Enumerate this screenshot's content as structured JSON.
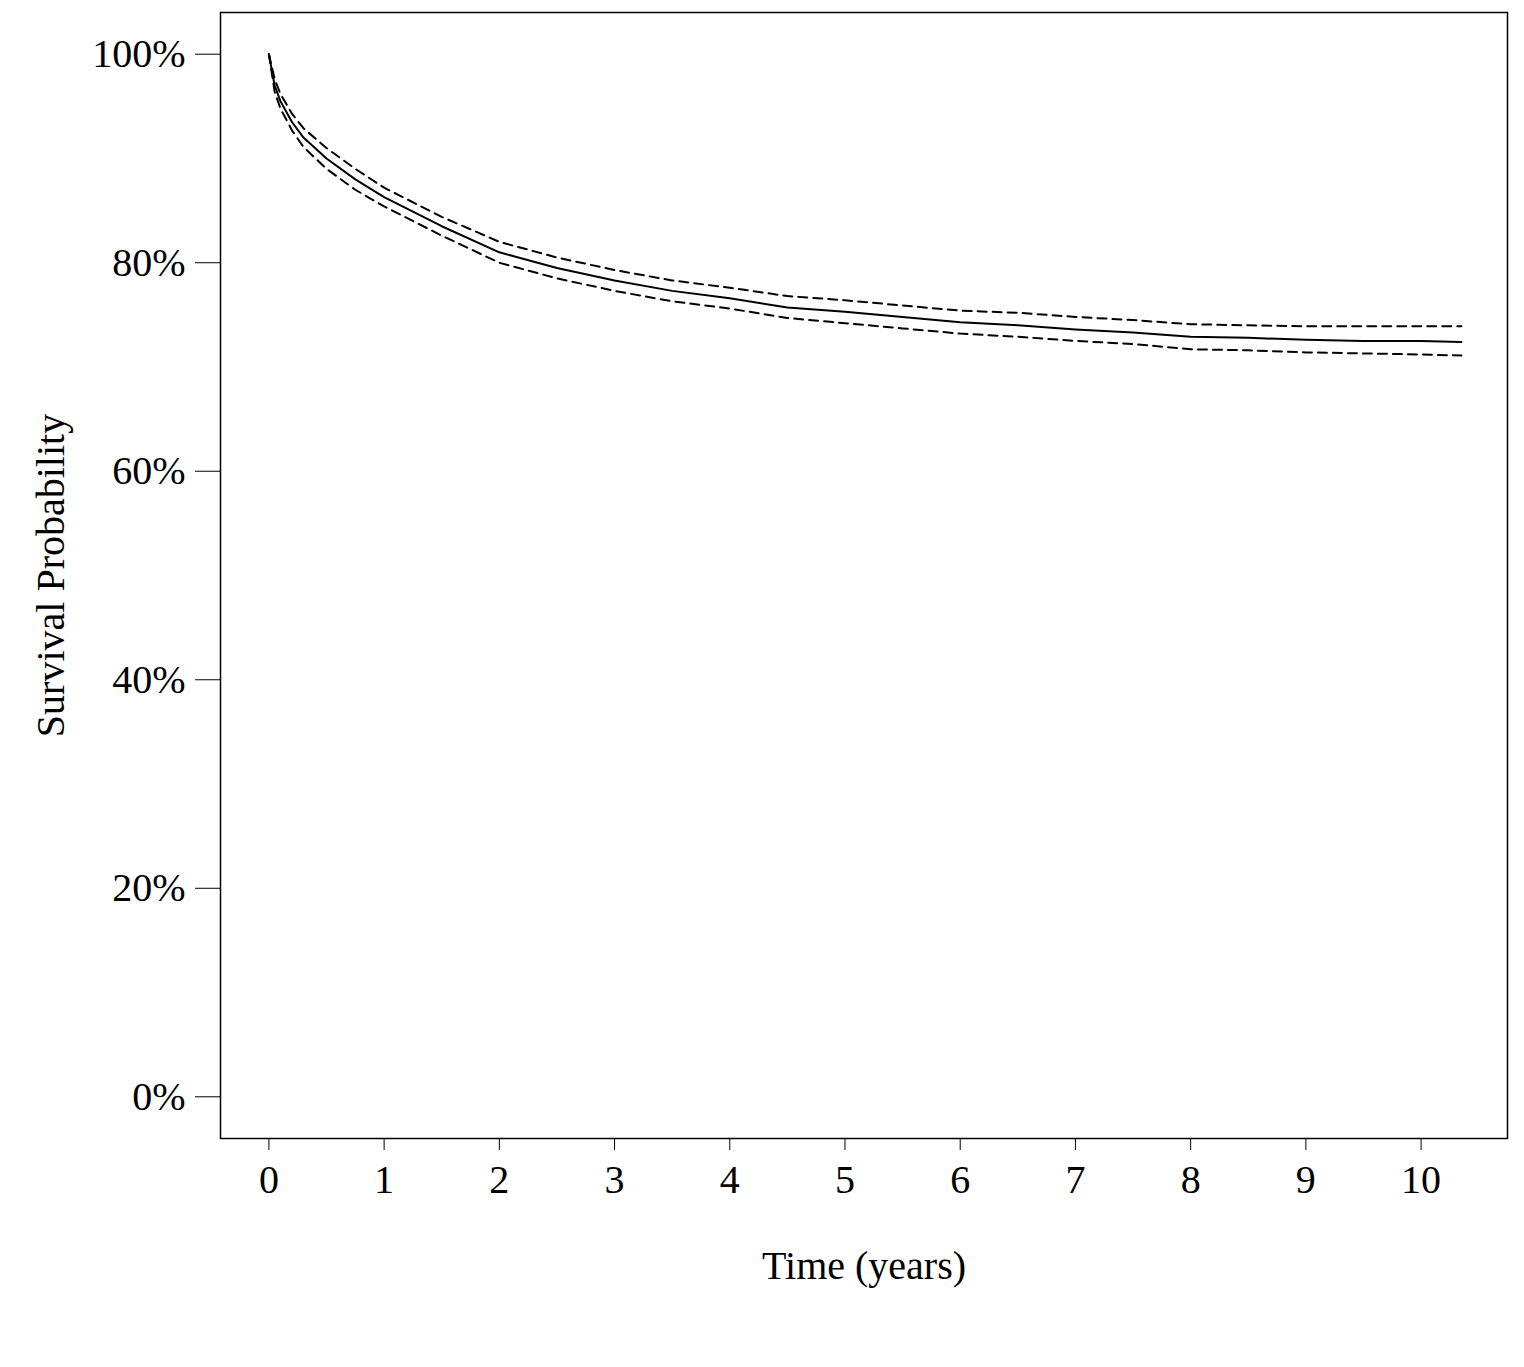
{
  "chart_data": {
    "type": "line",
    "xlabel": "Time (years)",
    "ylabel": "Survival Probability",
    "x": [
      0,
      0.05,
      0.1,
      0.2,
      0.3,
      0.5,
      0.75,
      1,
      1.5,
      2,
      2.5,
      3,
      3.5,
      4,
      4.5,
      5,
      5.5,
      6,
      6.5,
      7,
      7.5,
      8,
      8.5,
      9,
      9.5,
      10,
      10.35
    ],
    "series": [
      {
        "color": "#000000",
        "line_style": "solid",
        "values": [
          100,
          97,
          95.5,
          93.5,
          92,
          90,
          88,
          86.3,
          83.5,
          81,
          79.5,
          78.3,
          77.3,
          76.6,
          75.7,
          75.3,
          74.8,
          74.3,
          74,
          73.6,
          73.3,
          72.9,
          72.8,
          72.6,
          72.5,
          72.5,
          72.4
        ]
      },
      {
        "color": "#000000",
        "line_style": "dashed",
        "values": [
          100,
          97.6,
          96.2,
          94.3,
          92.9,
          91,
          89,
          87.2,
          84.4,
          82,
          80.5,
          79.3,
          78.3,
          77.6,
          76.8,
          76.4,
          75.9,
          75.4,
          75.2,
          74.8,
          74.5,
          74.1,
          74,
          73.9,
          73.9,
          73.9,
          73.9
        ]
      },
      {
        "color": "#000000",
        "line_style": "dashed",
        "values": [
          100,
          96.4,
          94.8,
          92.7,
          91.1,
          89,
          87,
          85.4,
          82.6,
          80,
          78.5,
          77.3,
          76.3,
          75.6,
          74.7,
          74.2,
          73.7,
          73.2,
          72.9,
          72.5,
          72.2,
          71.7,
          71.6,
          71.4,
          71.3,
          71.2,
          71.1
        ]
      }
    ],
    "xlim": [
      -0.42,
      10.75
    ],
    "xticks": [
      0,
      1,
      2,
      3,
      4,
      5,
      6,
      7,
      8,
      9,
      10
    ],
    "ylim": [
      -4,
      104
    ],
    "yticks": [
      {
        "value": 0,
        "label": "0%"
      },
      {
        "value": 20,
        "label": "20%"
      },
      {
        "value": 40,
        "label": "40%"
      },
      {
        "value": 60,
        "label": "60%"
      },
      {
        "value": 80,
        "label": "80%"
      },
      {
        "value": 100,
        "label": "100%"
      }
    ],
    "grid": false
  }
}
